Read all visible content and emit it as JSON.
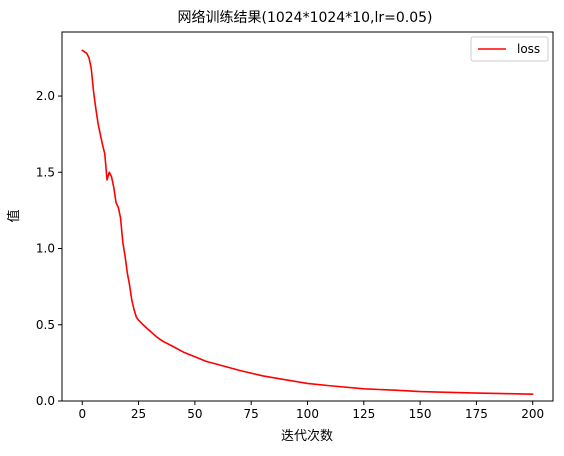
{
  "chart_data": {
    "type": "line",
    "title": "网络训练结果(1024*1024*10,lr=0.05)",
    "xlabel": "迭代次数",
    "ylabel": "值",
    "xlim": [
      -9,
      209
    ],
    "ylim": [
      0,
      2.42
    ],
    "x_ticks": [
      0,
      25,
      50,
      75,
      100,
      125,
      150,
      175,
      200
    ],
    "y_ticks": [
      0.0,
      0.5,
      1.0,
      1.5,
      2.0
    ],
    "x_tick_labels": [
      "0",
      "25",
      "50",
      "75",
      "100",
      "125",
      "150",
      "175",
      "200"
    ],
    "y_tick_labels": [
      "0.0",
      "0.5",
      "1.0",
      "1.5",
      "2.0"
    ],
    "grid": false,
    "legend_position": "top-right",
    "series": [
      {
        "name": "loss",
        "color": "#ff0000",
        "x": [
          0,
          1,
          2,
          3,
          4,
          5,
          6,
          7,
          8,
          9,
          10,
          11,
          12,
          13,
          14,
          15,
          16,
          17,
          18,
          19,
          20,
          21,
          22,
          23,
          24,
          25,
          27,
          30,
          33,
          36,
          40,
          45,
          50,
          55,
          60,
          70,
          80,
          90,
          100,
          110,
          125,
          140,
          150,
          160,
          175,
          190,
          200
        ],
        "values": [
          2.3,
          2.29,
          2.28,
          2.25,
          2.18,
          2.03,
          1.92,
          1.82,
          1.75,
          1.68,
          1.62,
          1.45,
          1.5,
          1.47,
          1.4,
          1.3,
          1.27,
          1.2,
          1.04,
          0.95,
          0.84,
          0.76,
          0.66,
          0.6,
          0.55,
          0.53,
          0.5,
          0.46,
          0.42,
          0.39,
          0.36,
          0.32,
          0.29,
          0.26,
          0.24,
          0.2,
          0.165,
          0.14,
          0.115,
          0.1,
          0.08,
          0.07,
          0.062,
          0.058,
          0.052,
          0.048,
          0.045
        ]
      }
    ]
  }
}
